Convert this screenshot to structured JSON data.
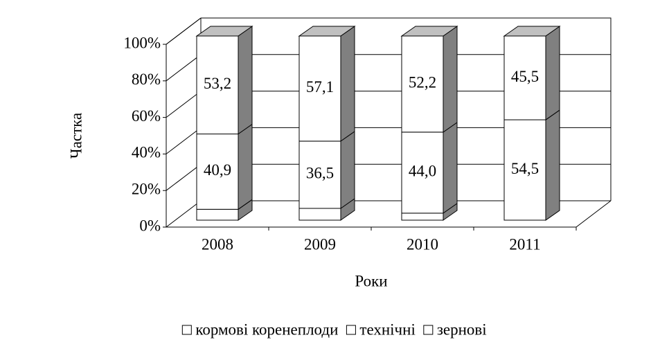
{
  "chart_data": {
    "type": "bar3d_stacked",
    "y_label": "Частка",
    "x_label": "Роки",
    "categories": [
      "2008",
      "2009",
      "2010",
      "2011"
    ],
    "series": [
      {
        "name": "кормові коренеплоди",
        "color": "#ffffff",
        "values": [
          5.9,
          6.4,
          3.8,
          0
        ]
      },
      {
        "name": "технічні",
        "color": "#ffffff",
        "values": [
          40.9,
          36.5,
          44.0,
          54.5
        ],
        "value_labels": [
          "40,9",
          "36,5",
          "44,0",
          "54,5"
        ]
      },
      {
        "name": "зернові",
        "color": "#ffffff",
        "values": [
          53.2,
          57.1,
          52.2,
          45.5
        ],
        "value_labels": [
          "53,2",
          "57,1",
          "52,2",
          "45,5"
        ]
      }
    ],
    "ylim": [
      0,
      100
    ],
    "yticks": [
      {
        "value": 0,
        "label": "0%"
      },
      {
        "value": 20,
        "label": "20%"
      },
      {
        "value": 40,
        "label": "40%"
      },
      {
        "value": 60,
        "label": "60%"
      },
      {
        "value": 80,
        "label": "80%"
      },
      {
        "value": 100,
        "label": "100%"
      }
    ],
    "grid": true,
    "legend": "bottom"
  }
}
